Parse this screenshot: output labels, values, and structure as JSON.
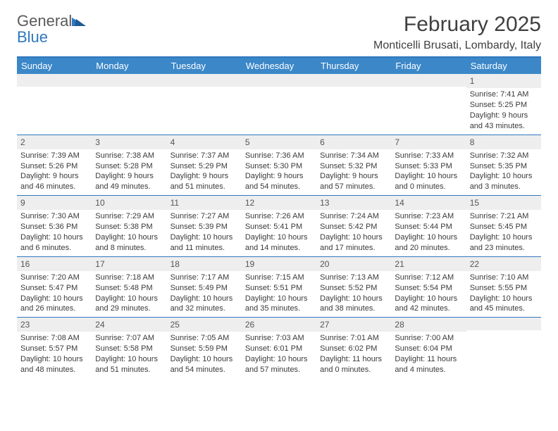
{
  "logo": {
    "text_general": "General",
    "text_blue": "Blue"
  },
  "title": "February 2025",
  "location": "Monticelli Brusati, Lombardy, Italy",
  "colors": {
    "header_bg": "#3b87c8",
    "header_text": "#ffffff",
    "rule": "#2f78bf",
    "daynum_bg": "#eeeeee",
    "body_text": "#3a3a3a",
    "page_bg": "#ffffff",
    "logo_gray": "#5a5a5a",
    "logo_blue": "#2f78bf"
  },
  "day_headers": [
    "Sunday",
    "Monday",
    "Tuesday",
    "Wednesday",
    "Thursday",
    "Friday",
    "Saturday"
  ],
  "weeks": [
    [
      {
        "n": "",
        "sr": "",
        "ss": "",
        "dl": ""
      },
      {
        "n": "",
        "sr": "",
        "ss": "",
        "dl": ""
      },
      {
        "n": "",
        "sr": "",
        "ss": "",
        "dl": ""
      },
      {
        "n": "",
        "sr": "",
        "ss": "",
        "dl": ""
      },
      {
        "n": "",
        "sr": "",
        "ss": "",
        "dl": ""
      },
      {
        "n": "",
        "sr": "",
        "ss": "",
        "dl": ""
      },
      {
        "n": "1",
        "sr": "Sunrise: 7:41 AM",
        "ss": "Sunset: 5:25 PM",
        "dl": "Daylight: 9 hours and 43 minutes."
      }
    ],
    [
      {
        "n": "2",
        "sr": "Sunrise: 7:39 AM",
        "ss": "Sunset: 5:26 PM",
        "dl": "Daylight: 9 hours and 46 minutes."
      },
      {
        "n": "3",
        "sr": "Sunrise: 7:38 AM",
        "ss": "Sunset: 5:28 PM",
        "dl": "Daylight: 9 hours and 49 minutes."
      },
      {
        "n": "4",
        "sr": "Sunrise: 7:37 AM",
        "ss": "Sunset: 5:29 PM",
        "dl": "Daylight: 9 hours and 51 minutes."
      },
      {
        "n": "5",
        "sr": "Sunrise: 7:36 AM",
        "ss": "Sunset: 5:30 PM",
        "dl": "Daylight: 9 hours and 54 minutes."
      },
      {
        "n": "6",
        "sr": "Sunrise: 7:34 AM",
        "ss": "Sunset: 5:32 PM",
        "dl": "Daylight: 9 hours and 57 minutes."
      },
      {
        "n": "7",
        "sr": "Sunrise: 7:33 AM",
        "ss": "Sunset: 5:33 PM",
        "dl": "Daylight: 10 hours and 0 minutes."
      },
      {
        "n": "8",
        "sr": "Sunrise: 7:32 AM",
        "ss": "Sunset: 5:35 PM",
        "dl": "Daylight: 10 hours and 3 minutes."
      }
    ],
    [
      {
        "n": "9",
        "sr": "Sunrise: 7:30 AM",
        "ss": "Sunset: 5:36 PM",
        "dl": "Daylight: 10 hours and 6 minutes."
      },
      {
        "n": "10",
        "sr": "Sunrise: 7:29 AM",
        "ss": "Sunset: 5:38 PM",
        "dl": "Daylight: 10 hours and 8 minutes."
      },
      {
        "n": "11",
        "sr": "Sunrise: 7:27 AM",
        "ss": "Sunset: 5:39 PM",
        "dl": "Daylight: 10 hours and 11 minutes."
      },
      {
        "n": "12",
        "sr": "Sunrise: 7:26 AM",
        "ss": "Sunset: 5:41 PM",
        "dl": "Daylight: 10 hours and 14 minutes."
      },
      {
        "n": "13",
        "sr": "Sunrise: 7:24 AM",
        "ss": "Sunset: 5:42 PM",
        "dl": "Daylight: 10 hours and 17 minutes."
      },
      {
        "n": "14",
        "sr": "Sunrise: 7:23 AM",
        "ss": "Sunset: 5:44 PM",
        "dl": "Daylight: 10 hours and 20 minutes."
      },
      {
        "n": "15",
        "sr": "Sunrise: 7:21 AM",
        "ss": "Sunset: 5:45 PM",
        "dl": "Daylight: 10 hours and 23 minutes."
      }
    ],
    [
      {
        "n": "16",
        "sr": "Sunrise: 7:20 AM",
        "ss": "Sunset: 5:47 PM",
        "dl": "Daylight: 10 hours and 26 minutes."
      },
      {
        "n": "17",
        "sr": "Sunrise: 7:18 AM",
        "ss": "Sunset: 5:48 PM",
        "dl": "Daylight: 10 hours and 29 minutes."
      },
      {
        "n": "18",
        "sr": "Sunrise: 7:17 AM",
        "ss": "Sunset: 5:49 PM",
        "dl": "Daylight: 10 hours and 32 minutes."
      },
      {
        "n": "19",
        "sr": "Sunrise: 7:15 AM",
        "ss": "Sunset: 5:51 PM",
        "dl": "Daylight: 10 hours and 35 minutes."
      },
      {
        "n": "20",
        "sr": "Sunrise: 7:13 AM",
        "ss": "Sunset: 5:52 PM",
        "dl": "Daylight: 10 hours and 38 minutes."
      },
      {
        "n": "21",
        "sr": "Sunrise: 7:12 AM",
        "ss": "Sunset: 5:54 PM",
        "dl": "Daylight: 10 hours and 42 minutes."
      },
      {
        "n": "22",
        "sr": "Sunrise: 7:10 AM",
        "ss": "Sunset: 5:55 PM",
        "dl": "Daylight: 10 hours and 45 minutes."
      }
    ],
    [
      {
        "n": "23",
        "sr": "Sunrise: 7:08 AM",
        "ss": "Sunset: 5:57 PM",
        "dl": "Daylight: 10 hours and 48 minutes."
      },
      {
        "n": "24",
        "sr": "Sunrise: 7:07 AM",
        "ss": "Sunset: 5:58 PM",
        "dl": "Daylight: 10 hours and 51 minutes."
      },
      {
        "n": "25",
        "sr": "Sunrise: 7:05 AM",
        "ss": "Sunset: 5:59 PM",
        "dl": "Daylight: 10 hours and 54 minutes."
      },
      {
        "n": "26",
        "sr": "Sunrise: 7:03 AM",
        "ss": "Sunset: 6:01 PM",
        "dl": "Daylight: 10 hours and 57 minutes."
      },
      {
        "n": "27",
        "sr": "Sunrise: 7:01 AM",
        "ss": "Sunset: 6:02 PM",
        "dl": "Daylight: 11 hours and 0 minutes."
      },
      {
        "n": "28",
        "sr": "Sunrise: 7:00 AM",
        "ss": "Sunset: 6:04 PM",
        "dl": "Daylight: 11 hours and 4 minutes."
      },
      {
        "n": "",
        "sr": "",
        "ss": "",
        "dl": ""
      }
    ]
  ]
}
